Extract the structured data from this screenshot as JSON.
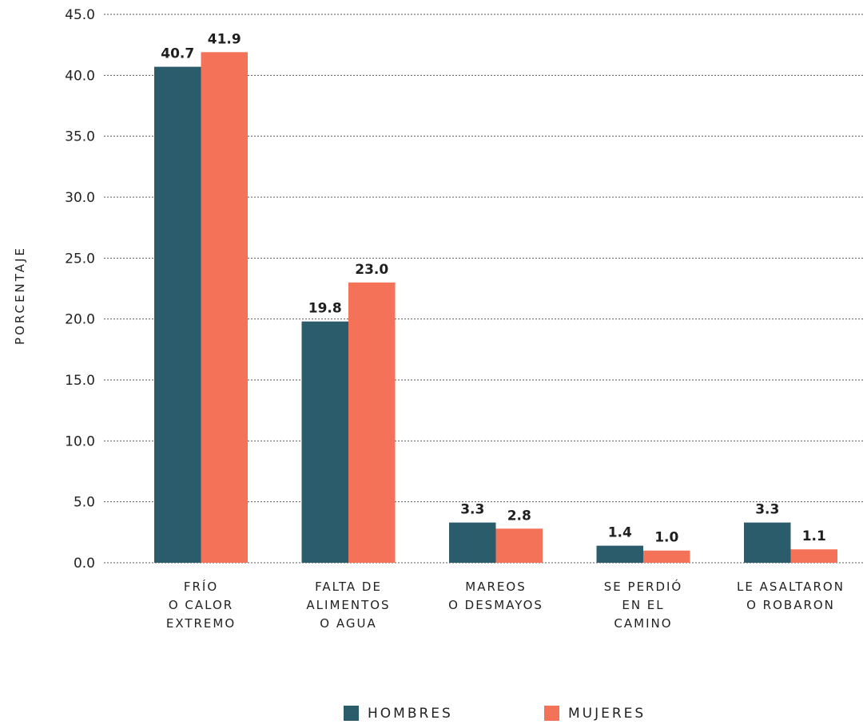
{
  "chart_data": {
    "type": "bar",
    "ylabel": "PORCENTAJE",
    "ylim": [
      0,
      45
    ],
    "yticks": [
      "0.0",
      "5.0",
      "10.0",
      "15.0",
      "20.0",
      "25.0",
      "30.0",
      "35.0",
      "40.0",
      "45.0"
    ],
    "grid": true,
    "legend_position": "bottom-center",
    "categories": [
      [
        "FRÍO",
        "O CALOR",
        "EXTREMO"
      ],
      [
        "FALTA DE",
        "ALIMENTOS",
        "O AGUA"
      ],
      [
        "MAREOS",
        "O DESMAYOS"
      ],
      [
        "SE PERDIÓ",
        "EN EL",
        "CAMINO"
      ],
      [
        "LE ASALTARON",
        "O ROBARON"
      ]
    ],
    "series": [
      {
        "name": "HOMBRES",
        "color": "#2b5c6b",
        "values": [
          40.7,
          19.8,
          3.3,
          1.4,
          3.3
        ],
        "labels": [
          "40.7",
          "19.8",
          "3.3",
          "1.4",
          "3.3"
        ]
      },
      {
        "name": "MUJERES",
        "color": "#f47358",
        "values": [
          41.9,
          23.0,
          2.8,
          1.0,
          1.1
        ],
        "labels": [
          "41.9",
          "23.0",
          "2.8",
          "1.0",
          "1.1"
        ]
      }
    ]
  }
}
